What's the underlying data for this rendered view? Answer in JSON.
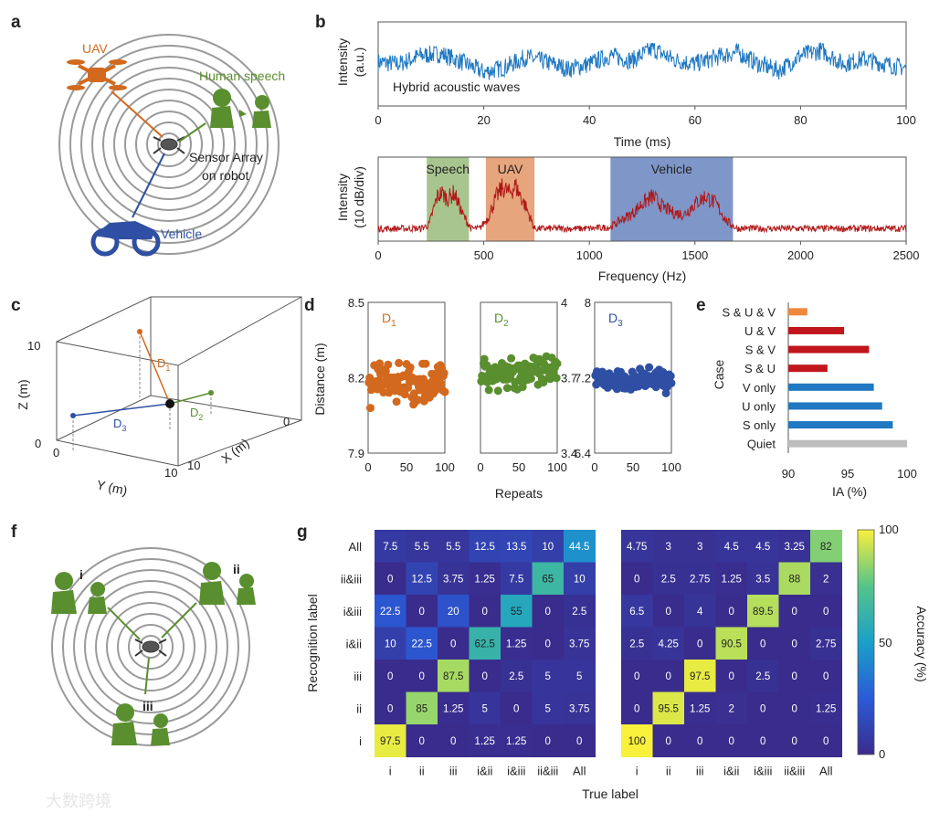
{
  "panel_labels": [
    "a",
    "b",
    "c",
    "d",
    "e",
    "f",
    "g"
  ],
  "colors": {
    "uav": "#d2691e",
    "speech": "#5a8f2f",
    "vehicle": "#2e4fa3",
    "waveform": "#1f78c1",
    "spectrum": "#b01818",
    "ring": "#9a9a9a",
    "bar_red": "#c0161c",
    "bar_blue": "#1f78c1",
    "bar_orange": "#f0883c",
    "bar_gray": "#bdbdbd"
  },
  "panel_a": {
    "uav_label": "UAV",
    "speech_label": "Human speech",
    "sensor_label_1": "Sensor Array",
    "sensor_label_2": "on robot",
    "vehicle_label": "Vehicle",
    "icons": [
      "drone-icon",
      "human-speech-icon",
      "robot-icon",
      "motorcycle-icon"
    ]
  },
  "panel_f": {
    "labels": [
      "i",
      "ii",
      "iii"
    ],
    "icons": [
      "speaker-pair-icon",
      "robot-icon"
    ]
  },
  "panel_c": {
    "z_label": "Z (m)",
    "y_label": "Y (m)",
    "x_label": "X (m)",
    "z_ticks": [
      "0",
      "10"
    ],
    "y_ticks": [
      "0",
      "10"
    ],
    "x_ticks": [
      "0",
      "10"
    ],
    "d_labels": [
      "D",
      "D",
      "D"
    ],
    "d_subs": [
      "1",
      "2",
      "3"
    ]
  },
  "chart_data": [
    {
      "id": "b-top",
      "type": "line",
      "annotation": "Hybrid acoustic waves",
      "xlabel": "Time (ms)",
      "ylabel": "Intensity",
      "ylabel2": "(a.u.)",
      "xlim": [
        0,
        100
      ],
      "xticks": [
        "0",
        "20",
        "40",
        "60",
        "80",
        "100"
      ],
      "x": [
        0,
        4,
        8,
        12,
        16,
        20,
        24,
        28,
        32,
        36,
        40,
        44,
        48,
        52,
        56,
        60,
        64,
        68,
        72,
        76,
        80,
        84,
        88,
        92,
        96,
        100
      ],
      "y": [
        0.52,
        0.5,
        0.6,
        0.62,
        0.52,
        0.4,
        0.46,
        0.58,
        0.52,
        0.44,
        0.5,
        0.6,
        0.54,
        0.68,
        0.55,
        0.5,
        0.58,
        0.64,
        0.5,
        0.42,
        0.6,
        0.66,
        0.5,
        0.56,
        0.5,
        0.45
      ]
    },
    {
      "id": "b-bottom",
      "type": "line",
      "xlabel": "Frequency (Hz)",
      "ylabel": "Intensity",
      "ylabel2": "(10 dB/div)",
      "xlim": [
        0,
        2500
      ],
      "xticks": [
        "0",
        "500",
        "1000",
        "1500",
        "2000",
        "2500"
      ],
      "bands": [
        {
          "name": "Speech",
          "from": 230,
          "to": 430,
          "color": "#a9c58f"
        },
        {
          "name": "UAV",
          "from": 510,
          "to": 740,
          "color": "#e6a57d"
        },
        {
          "name": "Vehicle",
          "from": 1100,
          "to": 1680,
          "color": "#7f96c8"
        }
      ],
      "x": [
        0,
        200,
        240,
        280,
        300,
        330,
        360,
        400,
        440,
        480,
        520,
        560,
        590,
        620,
        650,
        700,
        740,
        800,
        900,
        1000,
        1100,
        1150,
        1200,
        1250,
        1300,
        1350,
        1400,
        1450,
        1500,
        1550,
        1600,
        1650,
        1700,
        1800,
        2000,
        2200,
        2500
      ],
      "y": [
        0.1,
        0.1,
        0.15,
        0.55,
        0.6,
        0.52,
        0.6,
        0.3,
        0.1,
        0.1,
        0.25,
        0.55,
        0.68,
        0.6,
        0.7,
        0.4,
        0.1,
        0.1,
        0.1,
        0.1,
        0.12,
        0.22,
        0.3,
        0.45,
        0.55,
        0.4,
        0.32,
        0.3,
        0.45,
        0.55,
        0.45,
        0.2,
        0.1,
        0.1,
        0.1,
        0.1,
        0.1
      ]
    },
    {
      "id": "d",
      "type": "scatter",
      "ylabel": "Distance (m)",
      "xlabel": "Repeats",
      "xticks": [
        "0",
        "50",
        "100"
      ],
      "series": [
        {
          "name": "D1",
          "sub": "1",
          "ylim": [
            7.9,
            8.5
          ],
          "yticks": [
            "8.5",
            "8.2",
            "7.9"
          ],
          "mean": 8.18,
          "spread": 0.05
        },
        {
          "name": "D2",
          "sub": "2",
          "ylim": [
            3.4,
            4.0
          ],
          "yticks": [
            "4",
            "3.7",
            "3.4"
          ],
          "mean": 3.72,
          "spread": 0.04
        },
        {
          "name": "D3",
          "sub": "3",
          "ylim": [
            6.4,
            8.0
          ],
          "yticks": [
            "8",
            "7.2",
            "6.4"
          ],
          "mean": 7.18,
          "spread": 0.07
        }
      ]
    },
    {
      "id": "e",
      "type": "bar",
      "orientation": "horizontal",
      "ylabel": "Case",
      "xlabel": "IA (%)",
      "xlim": [
        90,
        100
      ],
      "xticks": [
        "90",
        "95",
        "100"
      ],
      "categories": [
        "S & U & V",
        "U & V",
        "S & V",
        "S & U",
        "V only",
        "U only",
        "S only",
        "Quiet"
      ],
      "values": [
        91.6,
        94.7,
        96.8,
        93.3,
        97.2,
        97.9,
        98.8,
        100
      ],
      "bar_colors": [
        "#f0883c",
        "#c0161c",
        "#c0161c",
        "#c0161c",
        "#1f78c1",
        "#1f78c1",
        "#1f78c1",
        "#bdbdbd"
      ]
    },
    {
      "id": "g",
      "type": "heatmap",
      "ylabel": "Recognition label",
      "xlabel": "True label",
      "colorbar_label": "Accuracy (%)",
      "colorbar_ticks": [
        "100",
        "50",
        "0"
      ],
      "categories": [
        "i",
        "ii",
        "iii",
        "i&ii",
        "i&iii",
        "ii&iii",
        "All"
      ],
      "rows_top_to_bottom": [
        "All",
        "ii&iii",
        "i&iii",
        "i&ii",
        "iii",
        "ii",
        "i"
      ],
      "matrices": [
        [
          [
            "7.5",
            "5.5",
            "5.5",
            "12.5",
            "13.5",
            "10",
            "44.5"
          ],
          [
            "0",
            "12.5",
            "3.75",
            "1.25",
            "7.5",
            "65",
            "10"
          ],
          [
            "22.5",
            "0",
            "20",
            "0",
            "55",
            "0",
            "2.5"
          ],
          [
            "10",
            "22.5",
            "0",
            "62.5",
            "1.25",
            "0",
            "3.75"
          ],
          [
            "0",
            "0",
            "87.5",
            "0",
            "2.5",
            "5",
            "5"
          ],
          [
            "0",
            "85",
            "1.25",
            "5",
            "0",
            "5",
            "3.75"
          ],
          [
            "97.5",
            "0",
            "0",
            "1.25",
            "1.25",
            "0",
            "0"
          ]
        ],
        [
          [
            "4.75",
            "3",
            "3",
            "4.5",
            "4.5",
            "3.25",
            "82"
          ],
          [
            "0",
            "2.5",
            "2.75",
            "1.25",
            "3.5",
            "88",
            "2"
          ],
          [
            "6.5",
            "0",
            "4",
            "0",
            "89.5",
            "0",
            "0"
          ],
          [
            "2.5",
            "4.25",
            "0",
            "90.5",
            "0",
            "0",
            "2.75"
          ],
          [
            "0",
            "0",
            "97.5",
            "0",
            "2.5",
            "0",
            "0"
          ],
          [
            "0",
            "95.5",
            "1.25",
            "2",
            "0",
            "0",
            "1.25"
          ],
          [
            "100",
            "0",
            "0",
            "0",
            "0",
            "0",
            "0"
          ]
        ]
      ]
    }
  ],
  "watermark": "大数跨境"
}
